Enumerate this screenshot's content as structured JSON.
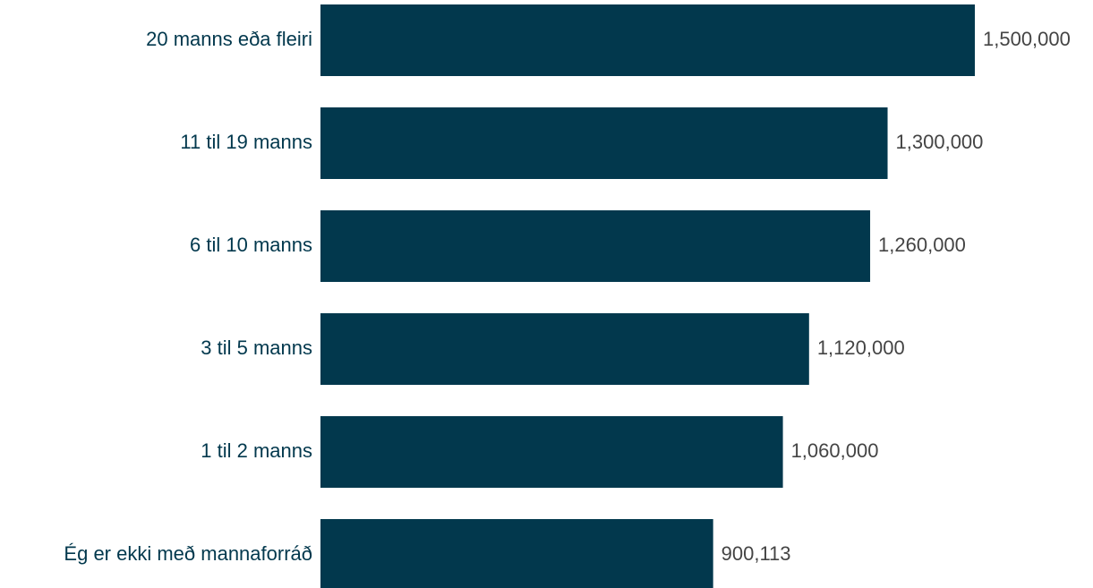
{
  "colors": {
    "bar": "#02384d",
    "category_text": "#02384d",
    "value_text": "#444444",
    "background": "#ffffff"
  },
  "chart_data": {
    "type": "bar",
    "orientation": "horizontal",
    "categories": [
      "20 manns eða fleiri",
      "11 til 19 manns",
      "6 til 10 manns",
      "3 til 5 manns",
      "1 til 2 manns",
      "Ég er ekki með mannaforráð"
    ],
    "values": [
      1500000,
      1300000,
      1260000,
      1120000,
      1060000,
      900113
    ],
    "value_labels": [
      "1,500,000",
      "1,300,000",
      "1,260,000",
      "1,120,000",
      "1,060,000",
      "900,113"
    ],
    "xlim": [
      0,
      1500000
    ],
    "grid": false,
    "legend": "none",
    "title": "",
    "xlabel": "",
    "ylabel": ""
  }
}
